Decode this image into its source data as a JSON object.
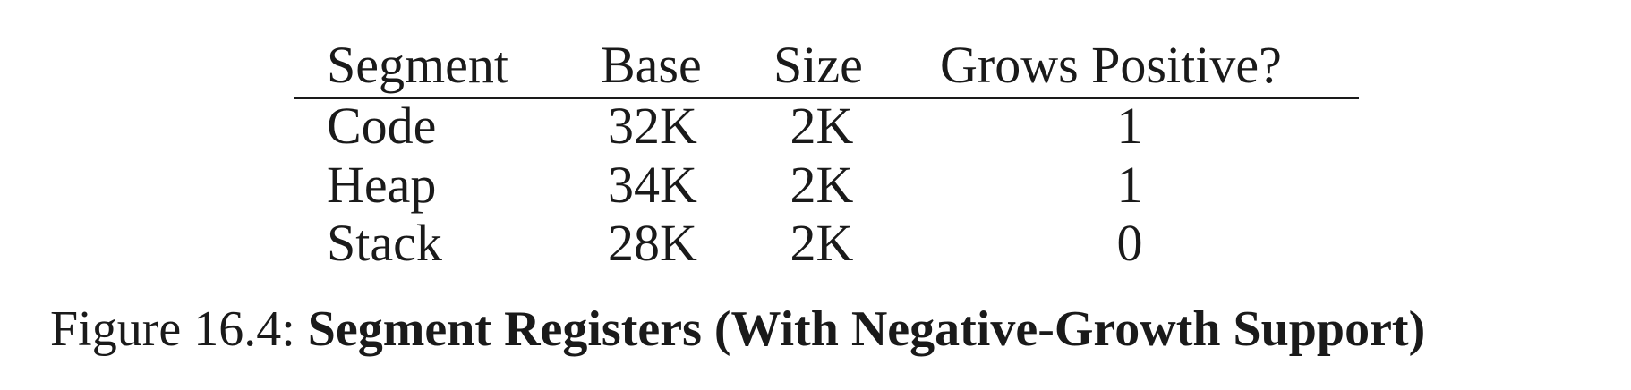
{
  "table": {
    "headers": [
      "Segment",
      "Base",
      "Size",
      "Grows Positive?"
    ],
    "rows": [
      [
        "Code",
        "32K",
        "2K",
        "1"
      ],
      [
        "Heap",
        "34K",
        "2K",
        "1"
      ],
      [
        "Stack",
        "28K",
        "2K",
        "0"
      ]
    ]
  },
  "caption": {
    "label": "Figure 16.4:",
    "title": "Segment Registers (With Negative-Growth Support)"
  }
}
